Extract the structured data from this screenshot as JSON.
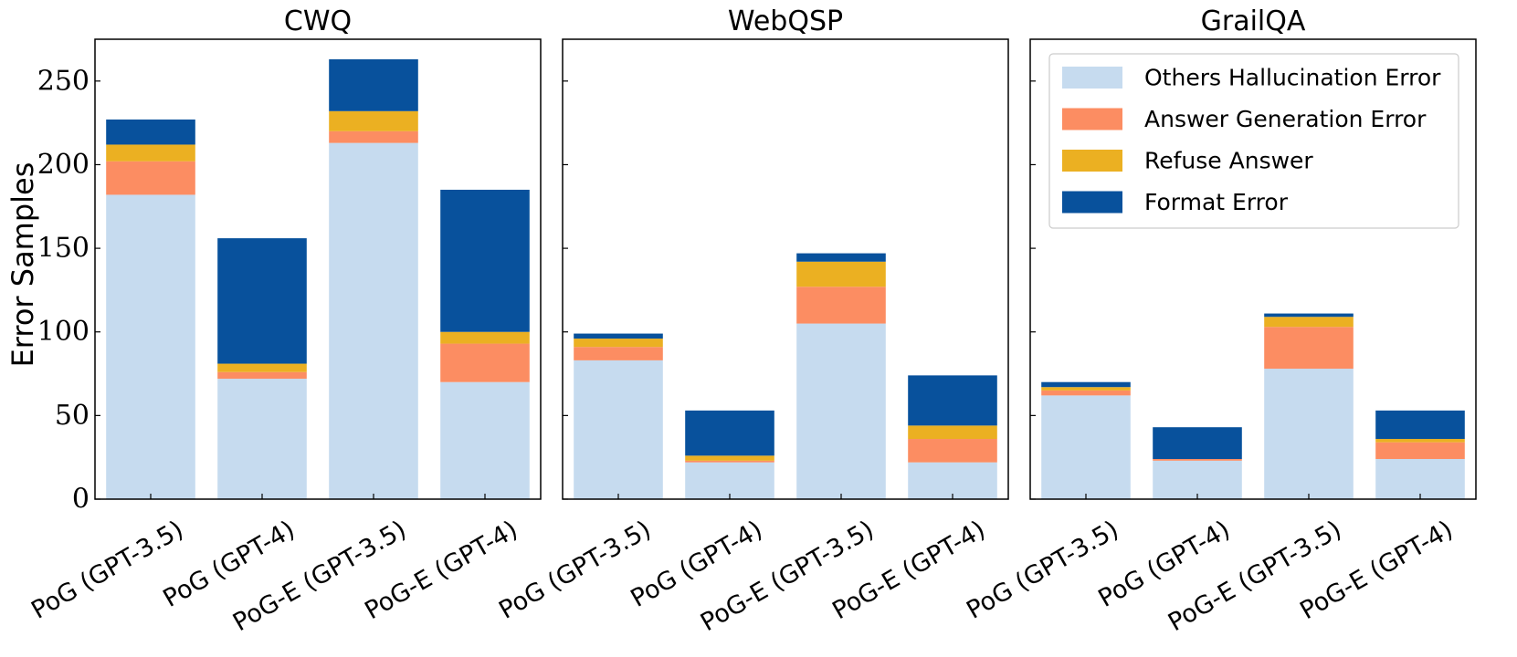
{
  "chart_data": {
    "type": "bar",
    "stacked": true,
    "ylabel": "Error Samples",
    "ylim": [
      0,
      275
    ],
    "yticks": [
      0,
      50,
      100,
      150,
      200,
      250
    ],
    "categories": [
      "PoG (GPT-3.5)",
      "PoG (GPT-4)",
      "PoG-E (GPT-3.5)",
      "PoG-E (GPT-4)"
    ],
    "legend": {
      "location": "upper right of third panel",
      "entries": [
        "Others Hallucination Error",
        "Answer Generation Error",
        "Refuse Answer",
        "Format Error"
      ]
    },
    "colors": {
      "Others Hallucination Error": "#c6dbef",
      "Answer Generation Error": "#fc8d62",
      "Refuse Answer": "#ebb022",
      "Format Error": "#08519c"
    },
    "panels": [
      {
        "title": "CWQ",
        "series": [
          {
            "name": "Others Hallucination Error",
            "values": [
              182,
              72,
              213,
              70
            ]
          },
          {
            "name": "Answer Generation Error",
            "values": [
              20,
              4,
              7,
              23
            ]
          },
          {
            "name": "Refuse Answer",
            "values": [
              10,
              5,
              12,
              7
            ]
          },
          {
            "name": "Format Error",
            "values": [
              15,
              75,
              31,
              85
            ]
          }
        ]
      },
      {
        "title": "WebQSP",
        "series": [
          {
            "name": "Others Hallucination Error",
            "values": [
              83,
              22,
              105,
              22
            ]
          },
          {
            "name": "Answer Generation Error",
            "values": [
              8,
              1,
              22,
              14
            ]
          },
          {
            "name": "Refuse Answer",
            "values": [
              5,
              3,
              15,
              8
            ]
          },
          {
            "name": "Format Error",
            "values": [
              3,
              27,
              5,
              30
            ]
          }
        ]
      },
      {
        "title": "GrailQA",
        "series": [
          {
            "name": "Others Hallucination Error",
            "values": [
              62,
              23,
              78,
              24
            ]
          },
          {
            "name": "Answer Generation Error",
            "values": [
              3,
              1,
              25,
              10
            ]
          },
          {
            "name": "Refuse Answer",
            "values": [
              2,
              0,
              6,
              2
            ]
          },
          {
            "name": "Format Error",
            "values": [
              3,
              19,
              2,
              17
            ]
          }
        ]
      }
    ]
  }
}
